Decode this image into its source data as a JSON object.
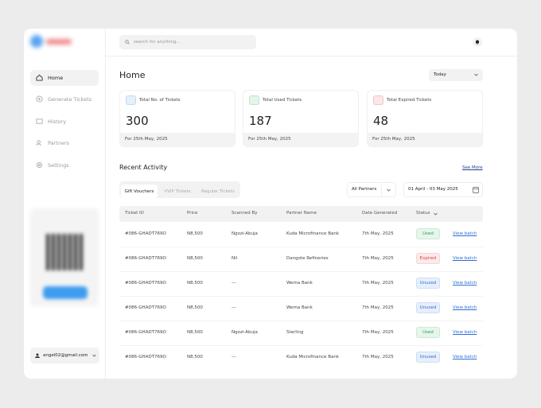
{
  "sidebar": {
    "nav": [
      "Home",
      "Generate Tickets",
      "History",
      "Partners",
      "Settings"
    ],
    "user_email": "angel02@gmail.com"
  },
  "topbar": {
    "search_placeholder": "search for anything..."
  },
  "header": {
    "title": "Home",
    "period": "Today"
  },
  "stats": [
    {
      "label": "Total No. of Tickets",
      "value": 300,
      "date": "For 25th May, 2025",
      "color": "#3b82c4",
      "bg": "#e6f0fa"
    },
    {
      "label": "Total Used Tickets",
      "value": 187,
      "date": "For 25th May, 2025",
      "color": "#2e9e5b",
      "bg": "#e4f5ea"
    },
    {
      "label": "Total Expired Tickets",
      "value": 48,
      "date": "For 25th May, 2025",
      "color": "#d64545",
      "bg": "#fbe7e7"
    }
  ],
  "activity": {
    "title": "Recent Activity",
    "see_more": "See More",
    "tabs": [
      "Gift Vouchers",
      "VVIP Tickets",
      "Regular Tickets"
    ],
    "partner_filter": "All Partners",
    "date_from": "01 April",
    "date_sep": "-",
    "date_to": "03 May 2025"
  },
  "table": {
    "columns": [
      "Ticket ID",
      "Price",
      "Scanned By",
      "Partner Name",
      "Date Generated",
      "Status"
    ],
    "rows": [
      {
        "ticket_id": "#086-GHADT769O",
        "price": "N8,500",
        "scanned_by": "Ngozi-Abuja",
        "partner": "Kuda Microfinance Bank",
        "date": "7th May, 2025",
        "status": "Used",
        "status_color": "#2e9e5b",
        "status_bg": "#e6f6ec",
        "action": "View batch"
      },
      {
        "ticket_id": "#086-GHADT769O",
        "price": "N8,500",
        "scanned_by": "Nil",
        "partner": "Dangote Refineries",
        "date": "7th May, 2025",
        "status": "Expired",
        "status_color": "#d64545",
        "status_bg": "#fdeaea",
        "action": "View batch"
      },
      {
        "ticket_id": "#086-GHADT769O",
        "price": "N8,500",
        "scanned_by": "---",
        "partner": "Wema Bank",
        "date": "7th May, 2025",
        "status": "Unused",
        "status_color": "#2f6fd6",
        "status_bg": "#e7effc",
        "action": "View batch"
      },
      {
        "ticket_id": "#086-GHADT769O",
        "price": "N8,500",
        "scanned_by": "---",
        "partner": "Wema Bank",
        "date": "7th May, 2025",
        "status": "Unused",
        "status_color": "#2f6fd6",
        "status_bg": "#e7effc",
        "action": "View batch"
      },
      {
        "ticket_id": "#086-GHADT769O",
        "price": "N8,500",
        "scanned_by": "Ngozi-Abuja",
        "partner": "Sterling",
        "date": "7th May, 2025",
        "status": "Used",
        "status_color": "#2e9e5b",
        "status_bg": "#e6f6ec",
        "action": "View batch"
      },
      {
        "ticket_id": "#086-GHADT769O",
        "price": "N8,500",
        "scanned_by": "---",
        "partner": "Kuda Microfinance Bank",
        "date": "7th May, 2025",
        "status": "Unused",
        "status_color": "#2f6fd6",
        "status_bg": "#e7effc",
        "action": "View batch"
      }
    ]
  }
}
